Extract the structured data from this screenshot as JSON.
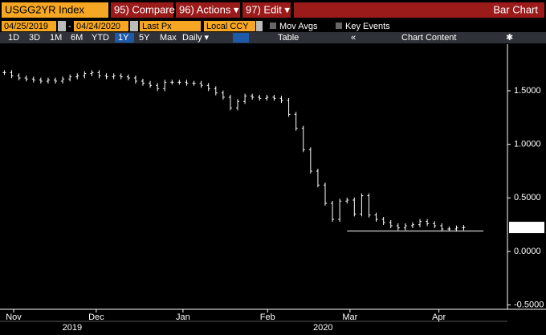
{
  "toolbar": {
    "ticker": "USGG2YR Index",
    "compare": "95) Compare",
    "actions": "96) Actions ▾",
    "edit": "97) Edit ▾",
    "view": "Bar Chart",
    "start_date": "04/25/2019",
    "end_date": "04/24/2020",
    "field": "Last Px",
    "currency": "Local CCY",
    "mov_avgs": "Mov Avgs",
    "key_events": "Key Events",
    "ranges": [
      "1D",
      "3D",
      "1M",
      "6M",
      "YTD",
      "1Y",
      "5Y",
      "Max"
    ],
    "active_range": "1Y",
    "frequency": "Daily ▾",
    "table": "Table",
    "chart_content": "Chart Content"
  },
  "chart_data": {
    "type": "bar",
    "color": "#ffffff",
    "values": [
      1.67,
      1.64,
      1.62,
      1.61,
      1.6,
      1.59,
      1.6,
      1.59,
      1.61,
      1.63,
      1.64,
      1.66,
      1.67,
      1.64,
      1.63,
      1.64,
      1.63,
      1.62,
      1.59,
      1.57,
      1.55,
      1.52,
      1.58,
      1.58,
      1.58,
      1.57,
      1.57,
      1.55,
      1.52,
      1.48,
      1.44,
      1.34,
      1.4,
      1.45,
      1.44,
      1.43,
      1.44,
      1.43,
      1.41,
      1.28,
      1.15,
      0.95,
      0.75,
      0.62,
      0.45,
      0.3,
      0.47,
      0.48,
      0.35,
      0.52,
      0.34,
      0.3,
      0.27,
      0.24,
      0.22,
      0.24,
      0.25,
      0.28,
      0.26,
      0.24,
      0.21,
      0.21,
      0.22,
      0.2245
    ],
    "xlim": [
      -0.6,
      69
    ],
    "xticks": [
      {
        "value": 1.27,
        "label": "Nov"
      },
      {
        "value": 12.6,
        "label": "Dec"
      },
      {
        "value": 24.5,
        "label": "Jan"
      },
      {
        "value": 36.1,
        "label": "Feb"
      },
      {
        "value": 47.4,
        "label": "Mar"
      },
      {
        "value": 59.6,
        "label": "Apr"
      }
    ],
    "xgroups": [
      {
        "value": 9.3,
        "label": "2019"
      },
      {
        "value": 43.7,
        "label": "2020"
      }
    ],
    "ylim": [
      -0.54,
      1.935
    ],
    "yticks": [
      {
        "value": 1.5,
        "label": "1.5000"
      },
      {
        "value": 1,
        "label": "1.0000"
      },
      {
        "value": 0.5,
        "label": "0.5000"
      },
      {
        "value": 0,
        "label": "0.0000"
      },
      {
        "value": -0.5,
        "label": "-0.5000"
      }
    ],
    "reference_line": {
      "value": 0.19,
      "x": [
        47,
        65.7
      ]
    }
  }
}
